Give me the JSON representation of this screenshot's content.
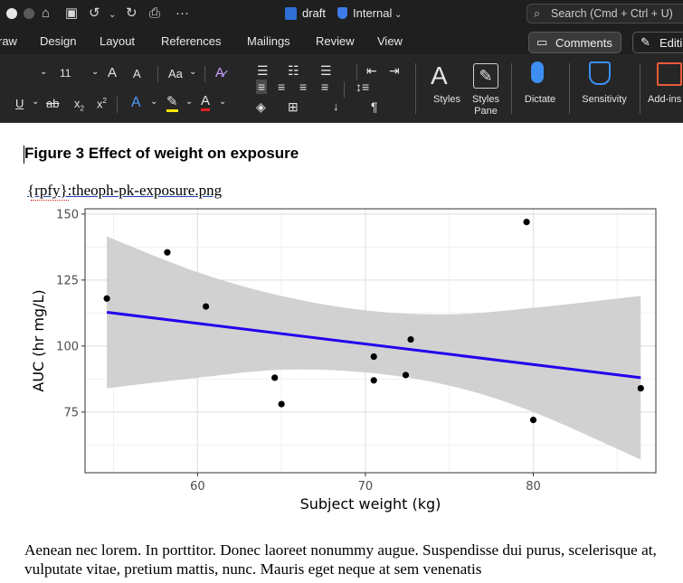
{
  "titlebar": {
    "doc_name": "draft",
    "sensitivity_label": "Internal",
    "search_placeholder": "Search (Cmd + Ctrl + U)"
  },
  "tabs": [
    "raw",
    "Design",
    "Layout",
    "References",
    "Mailings",
    "Review",
    "View"
  ],
  "actions": {
    "comments": "Comments",
    "editing": "Editi"
  },
  "ribbon": {
    "font_size": "11",
    "grow_font": "A",
    "shrink_font": "A",
    "change_case": "Aa",
    "styles": "Styles",
    "styles_pane_line1": "Styles",
    "styles_pane_line2": "Pane",
    "dictate": "Dictate",
    "sensitivity": "Sensitivity",
    "addins": "Add-ins"
  },
  "document": {
    "figure_title": "Figure 3 Effect of weight on exposure",
    "image_placeholder": "{rpfy}:theoph-pk-exposure.png",
    "body_text": "Aenean nec lorem. In porttitor. Donec laoreet nonummy augue. Suspendisse dui purus, scelerisque at, vulputate vitae, pretium mattis, nunc. Mauris eget neque at sem venenatis"
  },
  "chart_data": {
    "type": "scatter",
    "title": "",
    "xlabel": "Subject weight (kg)",
    "ylabel": "AUC (hr mg/L)",
    "xlim": [
      53.3,
      87.3
    ],
    "ylim": [
      52,
      152
    ],
    "xticks": [
      60,
      70,
      80
    ],
    "yticks": [
      75,
      100,
      125,
      150
    ],
    "grid": true,
    "points": [
      {
        "x": 54.6,
        "y": 118
      },
      {
        "x": 58.2,
        "y": 135.5
      },
      {
        "x": 60.5,
        "y": 115
      },
      {
        "x": 64.6,
        "y": 88
      },
      {
        "x": 65.0,
        "y": 78
      },
      {
        "x": 70.5,
        "y": 96
      },
      {
        "x": 70.5,
        "y": 87
      },
      {
        "x": 72.4,
        "y": 89
      },
      {
        "x": 72.7,
        "y": 102.5
      },
      {
        "x": 79.6,
        "y": 147
      },
      {
        "x": 80.0,
        "y": 72
      },
      {
        "x": 86.4,
        "y": 84
      }
    ],
    "fit_line": {
      "x": [
        54.6,
        86.4
      ],
      "y": [
        112.8,
        88
      ],
      "color": "#2200ee"
    },
    "confidence_band": {
      "color": "#cccccc",
      "x": [
        54.6,
        60,
        65,
        70,
        75,
        80,
        86.4
      ],
      "upper": [
        141.5,
        128,
        119,
        113.5,
        112,
        114.5,
        119
      ],
      "lower": [
        84,
        88,
        91,
        90,
        85,
        75,
        57
      ]
    }
  }
}
